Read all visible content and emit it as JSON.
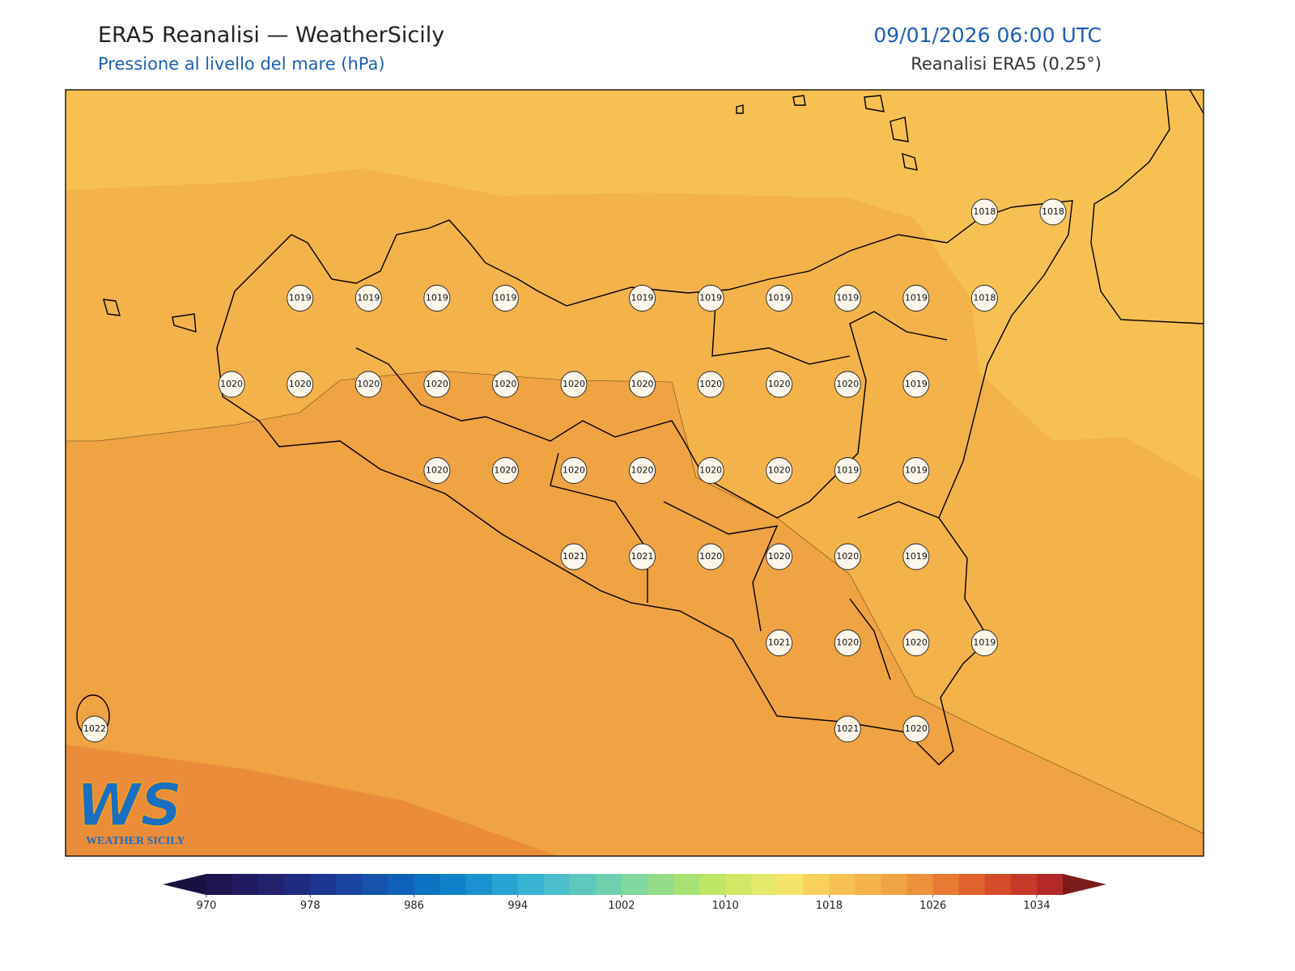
{
  "header": {
    "title": "ERA5 Reanalisi — WeatherSicily",
    "subtitle": "Pressione al livello del mare (hPa)",
    "datetime": "09/01/2026 06:00 UTC",
    "source": "Reanalisi ERA5 (0.25°)"
  },
  "stations": {
    "values": [
      [
        null,
        null,
        null,
        null,
        null,
        null,
        null,
        null,
        null,
        null,
        null,
        null,
        null,
        1018,
        1018
      ],
      [
        null,
        null,
        null,
        1019,
        1019,
        1019,
        1019,
        null,
        1019,
        1019,
        1019,
        1019,
        1019,
        1018,
        null
      ],
      [
        null,
        null,
        1020,
        1020,
        1020,
        1020,
        1020,
        1020,
        1020,
        1020,
        1020,
        1020,
        1019,
        null,
        null
      ],
      [
        null,
        null,
        null,
        null,
        null,
        1020,
        1020,
        1020,
        1020,
        1020,
        1020,
        1019,
        1019,
        null,
        null
      ],
      [
        null,
        null,
        null,
        null,
        null,
        null,
        null,
        1021,
        1021,
        1020,
        1020,
        1020,
        1019,
        null,
        null
      ],
      [
        null,
        null,
        null,
        null,
        null,
        null,
        null,
        null,
        null,
        null,
        1021,
        1020,
        1020,
        1019,
        null
      ],
      [
        1022,
        null,
        null,
        null,
        null,
        null,
        null,
        null,
        null,
        null,
        null,
        1021,
        1020,
        null,
        null
      ]
    ]
  },
  "colorbar": {
    "lim": [
      970,
      1036
    ],
    "ticks": [
      970,
      978,
      986,
      994,
      1002,
      1010,
      1018,
      1026,
      1034
    ],
    "under": "#1a1040",
    "over": "#7b1c1a",
    "colors": [
      "#1f1450",
      "#211a5e",
      "#22226c",
      "#1f2a80",
      "#1c3590",
      "#1a44a0",
      "#1553ad",
      "#1062b8",
      "#0e72c2",
      "#1182c9",
      "#1b92cf",
      "#27a3d2",
      "#38b3d2",
      "#4bbfcb",
      "#5ec8bf",
      "#6fd0b0",
      "#80d79d",
      "#94dc88",
      "#a8e173",
      "#bde566",
      "#d2e766",
      "#e4e86b",
      "#f6e36a",
      "#f9d05c",
      "#f6c152",
      "#f3b24a",
      "#f0a343",
      "#ec903b",
      "#e87a33",
      "#e0622d",
      "#d54c2a",
      "#c73a29",
      "#b52a28"
    ]
  },
  "logo": {
    "mark": "WS",
    "text": "WEATHER SICILY"
  }
}
